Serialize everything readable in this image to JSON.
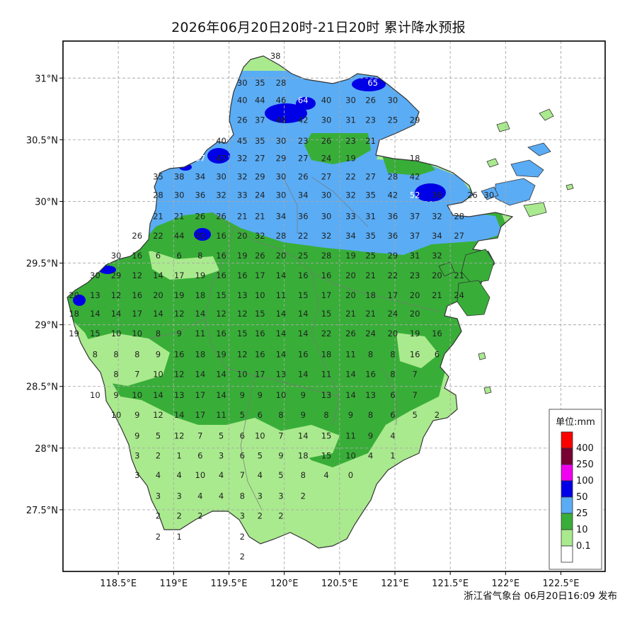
{
  "title": "2026年06月20日20时-21日20时 累计降水预报",
  "footer": "浙江省气象台 06月20日16:09 发布",
  "map": {
    "lon_labels": [
      "118.5°E",
      "119°E",
      "119.5°E",
      "120°E",
      "120.5°E",
      "121°E",
      "121.5°E",
      "122°E",
      "122.5°E"
    ],
    "lat_labels": [
      "31°N",
      "30.5°N",
      "30°N",
      "29.5°N",
      "29°N",
      "28.5°N",
      "28°N",
      "27.5°N"
    ],
    "lon_range": [
      118.0,
      122.9
    ],
    "lat_range": [
      27.0,
      31.3
    ],
    "grid": true,
    "fill_colors": {
      "0.1": "#aaea8e",
      "10": "#38ae38",
      "25": "#5aacf5",
      "50": "#0000e6",
      "100": "#f000f0",
      "250": "#780032",
      "400": "#fa0000"
    }
  },
  "legend": {
    "title": "单位:mm",
    "placement": "bottom-right",
    "items": [
      {
        "label": "400",
        "color": "#fa0000"
      },
      {
        "label": "250",
        "color": "#780032"
      },
      {
        "label": "100",
        "color": "#f000f0"
      },
      {
        "label": "50",
        "color": "#0000e6"
      },
      {
        "label": "25",
        "color": "#5aacf5"
      },
      {
        "label": "10",
        "color": "#38ae38"
      },
      {
        "label": "0.1",
        "color": "#aaea8e"
      },
      {
        "label": "",
        "color": "#ffffff"
      }
    ]
  },
  "station_rows": [
    {
      "lat": 31.18,
      "items": [
        [
          119.92,
          "38"
        ]
      ]
    },
    {
      "lat": 30.96,
      "items": [
        [
          119.62,
          "30"
        ],
        [
          119.78,
          "35"
        ],
        [
          119.97,
          "28"
        ],
        [
          120.8,
          "65"
        ]
      ]
    },
    {
      "lat": 30.82,
      "items": [
        [
          119.62,
          "40"
        ],
        [
          119.78,
          "44"
        ],
        [
          119.97,
          "46"
        ],
        [
          120.17,
          "64"
        ],
        [
          120.38,
          "40"
        ],
        [
          120.6,
          "30"
        ],
        [
          120.78,
          "26"
        ],
        [
          120.98,
          "30"
        ]
      ]
    },
    {
      "lat": 30.66,
      "items": [
        [
          119.62,
          "26"
        ],
        [
          119.78,
          "37"
        ],
        [
          119.97,
          "46"
        ],
        [
          120.17,
          "42"
        ],
        [
          120.38,
          "30"
        ],
        [
          120.6,
          "31"
        ],
        [
          120.78,
          "23"
        ],
        [
          120.98,
          "25"
        ],
        [
          121.18,
          "29"
        ]
      ]
    },
    {
      "lat": 30.49,
      "items": [
        [
          119.43,
          "40"
        ],
        [
          119.62,
          "45"
        ],
        [
          119.78,
          "35"
        ],
        [
          119.97,
          "30"
        ],
        [
          120.17,
          "23"
        ],
        [
          120.38,
          "26"
        ],
        [
          120.6,
          "23"
        ],
        [
          120.78,
          "21"
        ]
      ]
    },
    {
      "lat": 30.35,
      "items": [
        [
          119.24,
          "57"
        ],
        [
          119.43,
          "47"
        ],
        [
          119.62,
          "32"
        ],
        [
          119.78,
          "27"
        ],
        [
          119.97,
          "29"
        ],
        [
          120.17,
          "27"
        ],
        [
          120.38,
          "24"
        ],
        [
          120.6,
          "19"
        ],
        [
          121.18,
          "18"
        ]
      ]
    },
    {
      "lat": 30.2,
      "items": [
        [
          118.86,
          "35"
        ],
        [
          119.05,
          "38"
        ],
        [
          119.24,
          "34"
        ],
        [
          119.43,
          "30"
        ],
        [
          119.62,
          "32"
        ],
        [
          119.78,
          "29"
        ],
        [
          119.97,
          "30"
        ],
        [
          120.17,
          "26"
        ],
        [
          120.38,
          "27"
        ],
        [
          120.6,
          "22"
        ],
        [
          120.78,
          "27"
        ],
        [
          120.98,
          "28"
        ],
        [
          121.18,
          "42"
        ]
      ]
    },
    {
      "lat": 30.05,
      "items": [
        [
          118.86,
          "28"
        ],
        [
          119.05,
          "30"
        ],
        [
          119.24,
          "36"
        ],
        [
          119.43,
          "32"
        ],
        [
          119.62,
          "33"
        ],
        [
          119.78,
          "24"
        ],
        [
          119.97,
          "30"
        ],
        [
          120.17,
          "34"
        ],
        [
          120.38,
          "30"
        ],
        [
          120.6,
          "32"
        ],
        [
          120.78,
          "35"
        ],
        [
          120.98,
          "42"
        ],
        [
          121.18,
          "52"
        ],
        [
          121.38,
          "36"
        ],
        [
          121.7,
          "26"
        ],
        [
          121.85,
          "30"
        ]
      ]
    },
    {
      "lat": 29.88,
      "items": [
        [
          118.86,
          "21"
        ],
        [
          119.05,
          "21"
        ],
        [
          119.24,
          "26"
        ],
        [
          119.43,
          "26"
        ],
        [
          119.62,
          "21"
        ],
        [
          119.78,
          "21"
        ],
        [
          119.97,
          "34"
        ],
        [
          120.17,
          "36"
        ],
        [
          120.38,
          "30"
        ],
        [
          120.6,
          "33"
        ],
        [
          120.78,
          "31"
        ],
        [
          120.98,
          "36"
        ],
        [
          121.18,
          "37"
        ],
        [
          121.38,
          "32"
        ],
        [
          121.58,
          "28"
        ]
      ]
    },
    {
      "lat": 29.72,
      "items": [
        [
          118.67,
          "26"
        ],
        [
          118.86,
          "22"
        ],
        [
          119.05,
          "44"
        ],
        [
          119.24,
          "30"
        ],
        [
          119.43,
          "16"
        ],
        [
          119.62,
          "20"
        ],
        [
          119.78,
          "32"
        ],
        [
          119.97,
          "28"
        ],
        [
          120.17,
          "22"
        ],
        [
          120.38,
          "32"
        ],
        [
          120.6,
          "34"
        ],
        [
          120.78,
          "35"
        ],
        [
          120.98,
          "36"
        ],
        [
          121.18,
          "37"
        ],
        [
          121.38,
          "34"
        ],
        [
          121.58,
          "27"
        ]
      ]
    },
    {
      "lat": 29.56,
      "items": [
        [
          118.48,
          "30"
        ],
        [
          118.67,
          "16"
        ],
        [
          118.86,
          "6"
        ],
        [
          119.05,
          "6"
        ],
        [
          119.24,
          "8"
        ],
        [
          119.43,
          "16"
        ],
        [
          119.62,
          "19"
        ],
        [
          119.78,
          "26"
        ],
        [
          119.97,
          "20"
        ],
        [
          120.17,
          "25"
        ],
        [
          120.38,
          "28"
        ],
        [
          120.6,
          "19"
        ],
        [
          120.78,
          "25"
        ],
        [
          120.98,
          "29"
        ],
        [
          121.18,
          "31"
        ],
        [
          121.38,
          "32"
        ]
      ]
    },
    {
      "lat": 29.4,
      "items": [
        [
          118.29,
          "30"
        ],
        [
          118.48,
          "29"
        ],
        [
          118.67,
          "12"
        ],
        [
          118.86,
          "14"
        ],
        [
          119.05,
          "17"
        ],
        [
          119.24,
          "19"
        ],
        [
          119.43,
          "16"
        ],
        [
          119.62,
          "16"
        ],
        [
          119.78,
          "17"
        ],
        [
          119.97,
          "14"
        ],
        [
          120.17,
          "16"
        ],
        [
          120.38,
          "16"
        ],
        [
          120.6,
          "20"
        ],
        [
          120.78,
          "21"
        ],
        [
          120.98,
          "22"
        ],
        [
          121.18,
          "23"
        ],
        [
          121.38,
          "20"
        ],
        [
          121.58,
          "21"
        ]
      ]
    },
    {
      "lat": 29.24,
      "items": [
        [
          118.1,
          "20"
        ],
        [
          118.29,
          "13"
        ],
        [
          118.48,
          "12"
        ],
        [
          118.67,
          "16"
        ],
        [
          118.86,
          "20"
        ],
        [
          119.05,
          "19"
        ],
        [
          119.24,
          "18"
        ],
        [
          119.43,
          "15"
        ],
        [
          119.62,
          "13"
        ],
        [
          119.78,
          "10"
        ],
        [
          119.97,
          "11"
        ],
        [
          120.17,
          "15"
        ],
        [
          120.38,
          "17"
        ],
        [
          120.6,
          "20"
        ],
        [
          120.78,
          "18"
        ],
        [
          120.98,
          "17"
        ],
        [
          121.18,
          "20"
        ],
        [
          121.38,
          "21"
        ],
        [
          121.58,
          "24"
        ]
      ]
    },
    {
      "lat": 29.09,
      "items": [
        [
          118.1,
          "18"
        ],
        [
          118.29,
          "14"
        ],
        [
          118.48,
          "14"
        ],
        [
          118.67,
          "17"
        ],
        [
          118.86,
          "14"
        ],
        [
          119.05,
          "12"
        ],
        [
          119.24,
          "14"
        ],
        [
          119.43,
          "12"
        ],
        [
          119.62,
          "12"
        ],
        [
          119.78,
          "15"
        ],
        [
          119.97,
          "14"
        ],
        [
          120.17,
          "14"
        ],
        [
          120.38,
          "15"
        ],
        [
          120.6,
          "21"
        ],
        [
          120.78,
          "21"
        ],
        [
          120.98,
          "24"
        ],
        [
          121.18,
          "20"
        ]
      ]
    },
    {
      "lat": 28.93,
      "items": [
        [
          118.1,
          "19"
        ],
        [
          118.29,
          "15"
        ],
        [
          118.48,
          "10"
        ],
        [
          118.67,
          "10"
        ],
        [
          118.86,
          "8"
        ],
        [
          119.05,
          "9"
        ],
        [
          119.24,
          "11"
        ],
        [
          119.43,
          "16"
        ],
        [
          119.62,
          "15"
        ],
        [
          119.78,
          "16"
        ],
        [
          119.97,
          "14"
        ],
        [
          120.17,
          "14"
        ],
        [
          120.38,
          "22"
        ],
        [
          120.6,
          "26"
        ],
        [
          120.78,
          "24"
        ],
        [
          120.98,
          "20"
        ],
        [
          121.18,
          "19"
        ],
        [
          121.38,
          "16"
        ]
      ]
    },
    {
      "lat": 28.76,
      "items": [
        [
          118.29,
          "8"
        ],
        [
          118.48,
          "8"
        ],
        [
          118.67,
          "8"
        ],
        [
          118.86,
          "9"
        ],
        [
          119.05,
          "16"
        ],
        [
          119.24,
          "18"
        ],
        [
          119.43,
          "19"
        ],
        [
          119.62,
          "12"
        ],
        [
          119.78,
          "16"
        ],
        [
          119.97,
          "14"
        ],
        [
          120.17,
          "16"
        ],
        [
          120.38,
          "18"
        ],
        [
          120.6,
          "11"
        ],
        [
          120.78,
          "8"
        ],
        [
          120.98,
          "8"
        ],
        [
          121.18,
          "16"
        ],
        [
          121.38,
          "6"
        ]
      ]
    },
    {
      "lat": 28.6,
      "items": [
        [
          118.48,
          "8"
        ],
        [
          118.67,
          "7"
        ],
        [
          118.86,
          "10"
        ],
        [
          119.05,
          "12"
        ],
        [
          119.24,
          "14"
        ],
        [
          119.43,
          "14"
        ],
        [
          119.62,
          "10"
        ],
        [
          119.78,
          "17"
        ],
        [
          119.97,
          "13"
        ],
        [
          120.17,
          "14"
        ],
        [
          120.38,
          "11"
        ],
        [
          120.6,
          "14"
        ],
        [
          120.78,
          "16"
        ],
        [
          120.98,
          "8"
        ],
        [
          121.18,
          "7"
        ]
      ]
    },
    {
      "lat": 28.43,
      "items": [
        [
          118.29,
          "10"
        ],
        [
          118.48,
          "9"
        ],
        [
          118.67,
          "10"
        ],
        [
          118.86,
          "14"
        ],
        [
          119.05,
          "13"
        ],
        [
          119.24,
          "17"
        ],
        [
          119.43,
          "14"
        ],
        [
          119.62,
          "9"
        ],
        [
          119.78,
          "9"
        ],
        [
          119.97,
          "10"
        ],
        [
          120.17,
          "9"
        ],
        [
          120.38,
          "13"
        ],
        [
          120.6,
          "14"
        ],
        [
          120.78,
          "13"
        ],
        [
          120.98,
          "6"
        ],
        [
          121.18,
          "7"
        ]
      ]
    },
    {
      "lat": 28.27,
      "items": [
        [
          118.48,
          "10"
        ],
        [
          118.67,
          "9"
        ],
        [
          118.86,
          "12"
        ],
        [
          119.05,
          "14"
        ],
        [
          119.24,
          "17"
        ],
        [
          119.43,
          "11"
        ],
        [
          119.62,
          "5"
        ],
        [
          119.78,
          "6"
        ],
        [
          119.97,
          "8"
        ],
        [
          120.17,
          "9"
        ],
        [
          120.38,
          "8"
        ],
        [
          120.6,
          "9"
        ],
        [
          120.78,
          "8"
        ],
        [
          120.98,
          "6"
        ],
        [
          121.18,
          "5"
        ],
        [
          121.38,
          "2"
        ]
      ]
    },
    {
      "lat": 28.1,
      "items": [
        [
          118.67,
          "9"
        ],
        [
          118.86,
          "5"
        ],
        [
          119.05,
          "12"
        ],
        [
          119.24,
          "7"
        ],
        [
          119.43,
          "5"
        ],
        [
          119.62,
          "6"
        ],
        [
          119.78,
          "10"
        ],
        [
          119.97,
          "7"
        ],
        [
          120.17,
          "14"
        ],
        [
          120.38,
          "15"
        ],
        [
          120.6,
          "11"
        ],
        [
          120.78,
          "9"
        ],
        [
          120.98,
          "4"
        ]
      ]
    },
    {
      "lat": 27.94,
      "items": [
        [
          118.67,
          "3"
        ],
        [
          118.86,
          "2"
        ],
        [
          119.05,
          "1"
        ],
        [
          119.24,
          "6"
        ],
        [
          119.43,
          "3"
        ],
        [
          119.62,
          "6"
        ],
        [
          119.78,
          "5"
        ],
        [
          119.97,
          "9"
        ],
        [
          120.17,
          "18"
        ],
        [
          120.38,
          "15"
        ],
        [
          120.6,
          "10"
        ],
        [
          120.78,
          "4"
        ],
        [
          120.98,
          "1"
        ]
      ]
    },
    {
      "lat": 27.78,
      "items": [
        [
          118.67,
          "3"
        ],
        [
          118.86,
          "4"
        ],
        [
          119.05,
          "4"
        ],
        [
          119.24,
          "10"
        ],
        [
          119.43,
          "4"
        ],
        [
          119.62,
          "7"
        ],
        [
          119.78,
          "4"
        ],
        [
          119.97,
          "5"
        ],
        [
          120.17,
          "8"
        ],
        [
          120.38,
          "4"
        ],
        [
          120.6,
          "0"
        ]
      ]
    },
    {
      "lat": 27.61,
      "items": [
        [
          118.86,
          "3"
        ],
        [
          119.05,
          "3"
        ],
        [
          119.24,
          "4"
        ],
        [
          119.43,
          "4"
        ],
        [
          119.62,
          "8"
        ],
        [
          119.78,
          "3"
        ],
        [
          119.97,
          "3"
        ],
        [
          120.17,
          "2"
        ]
      ]
    },
    {
      "lat": 27.45,
      "items": [
        [
          118.86,
          "2"
        ],
        [
          119.05,
          "2"
        ],
        [
          119.24,
          "2"
        ],
        [
          119.62,
          "3"
        ],
        [
          119.78,
          "2"
        ],
        [
          119.97,
          "2"
        ]
      ]
    },
    {
      "lat": 27.28,
      "items": [
        [
          118.86,
          "2"
        ],
        [
          119.05,
          "1"
        ],
        [
          119.62,
          "2"
        ]
      ]
    },
    {
      "lat": 27.12,
      "items": [
        [
          119.62,
          "2"
        ]
      ]
    }
  ]
}
